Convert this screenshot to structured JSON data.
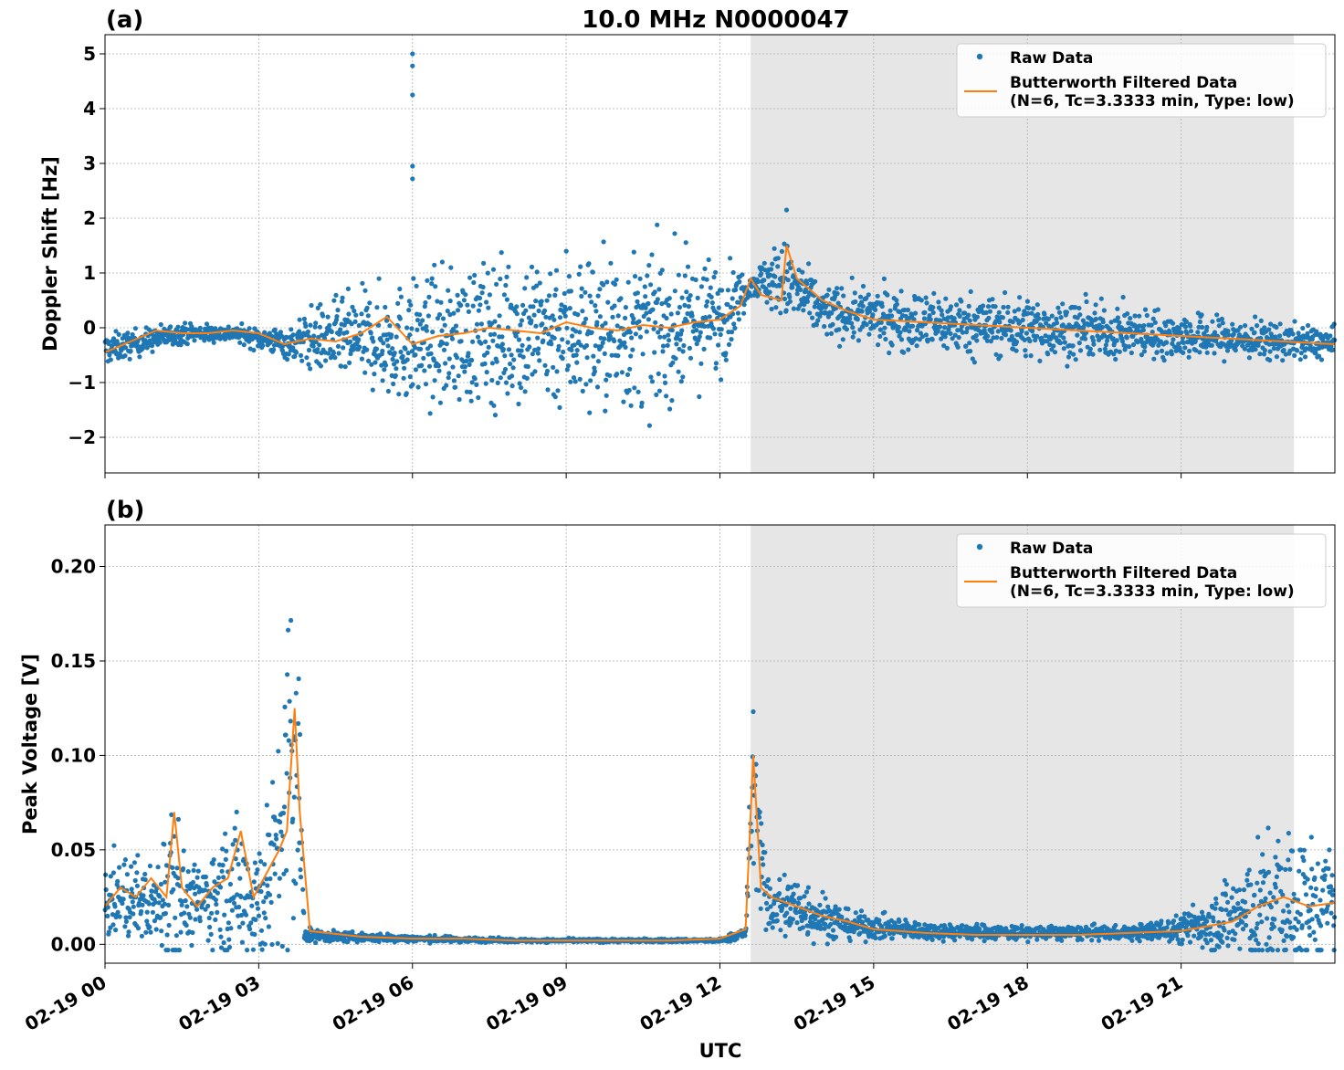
{
  "figure_title": "10.0 MHz N0000047",
  "x_axis_label": "UTC",
  "x_tick_labels": [
    "02-19 00",
    "02-19 03",
    "02-19 06",
    "02-19 09",
    "02-19 12",
    "02-19 15",
    "02-19 18",
    "02-19 21"
  ],
  "colors": {
    "raw": "#1f77b4",
    "filtered": "#ff7f0e",
    "shade": "#e6e6e6",
    "grid": "#b0b0b0"
  },
  "chart_data": [
    {
      "type": "scatter",
      "panel_label": "(a)",
      "ylabel": "Doppler Shift [Hz]",
      "xlim_hours": [
        0,
        24
      ],
      "ylim": [
        -2.65,
        5.35
      ],
      "yticks": [
        -2,
        -1,
        0,
        1,
        2,
        3,
        4,
        5
      ],
      "ytick_labels": [
        "−2",
        "−1",
        "0",
        "1",
        "2",
        "3",
        "4",
        "5"
      ],
      "grid": true,
      "legend_position": "top-right",
      "shaded_region_hours": [
        12.6,
        23.2
      ],
      "series": [
        {
          "name": "Raw Data",
          "style": "points",
          "envelope_hours": [
            0,
            1.5,
            2.5,
            3.6,
            4.0,
            5.0,
            6.0,
            7.5,
            9.0,
            10.0,
            11.0,
            12.0,
            12.6,
            13.2,
            14.0,
            16.0,
            18.0,
            20.0,
            22.0,
            24.0
          ],
          "envelope_center": [
            -0.4,
            -0.1,
            -0.1,
            -0.3,
            -0.2,
            -0.2,
            -0.3,
            -0.1,
            0.0,
            -0.1,
            0.0,
            0.2,
            0.8,
            0.9,
            0.3,
            0.1,
            0.0,
            -0.1,
            -0.2,
            -0.3
          ],
          "envelope_halfwidth": [
            0.3,
            0.2,
            0.15,
            0.3,
            0.6,
            0.9,
            1.2,
            1.4,
            1.6,
            1.6,
            1.4,
            1.1,
            0.2,
            0.8,
            0.5,
            0.6,
            0.6,
            0.5,
            0.4,
            0.3
          ],
          "outliers": [
            [
              6.0,
              5.0
            ],
            [
              6.0,
              4.78
            ],
            [
              6.0,
              4.25
            ],
            [
              6.0,
              2.95
            ],
            [
              6.0,
              2.72
            ],
            [
              13.3,
              2.15
            ]
          ]
        },
        {
          "name": "Butterworth Filtered Data\n(N=6, Tc=3.3333 min, Type: low)",
          "style": "line",
          "x_hours": [
            0,
            0.5,
            1.0,
            1.5,
            2.0,
            2.5,
            3.0,
            3.5,
            4.0,
            4.5,
            5.0,
            5.5,
            6.0,
            6.5,
            7.0,
            7.5,
            8.0,
            8.5,
            9.0,
            9.5,
            10.0,
            10.5,
            11.0,
            11.5,
            12.0,
            12.4,
            12.6,
            12.8,
            13.2,
            13.3,
            13.5,
            14.0,
            14.5,
            15.0,
            16.0,
            17.0,
            18.0,
            19.0,
            20.0,
            21.0,
            22.0,
            23.0,
            24.0
          ],
          "y": [
            -0.45,
            -0.25,
            -0.05,
            -0.1,
            -0.1,
            -0.05,
            -0.1,
            -0.3,
            -0.2,
            -0.25,
            -0.1,
            0.2,
            -0.3,
            -0.15,
            -0.1,
            0.0,
            -0.05,
            -0.1,
            0.1,
            0.0,
            -0.05,
            0.05,
            0.0,
            0.1,
            0.15,
            0.4,
            0.9,
            0.6,
            0.5,
            1.5,
            0.9,
            0.5,
            0.3,
            0.15,
            0.1,
            0.05,
            0.0,
            -0.05,
            -0.1,
            -0.15,
            -0.2,
            -0.25,
            -0.3
          ]
        }
      ]
    },
    {
      "type": "scatter",
      "panel_label": "(b)",
      "ylabel": "Peak Voltage [V]",
      "xlim_hours": [
        0,
        24
      ],
      "ylim": [
        -0.01,
        0.222
      ],
      "yticks": [
        0.0,
        0.05,
        0.1,
        0.15,
        0.2
      ],
      "ytick_labels": [
        "0.00",
        "0.05",
        "0.10",
        "0.15",
        "0.20"
      ],
      "grid": true,
      "legend_position": "top-right",
      "shaded_region_hours": [
        12.6,
        23.2
      ],
      "series": [
        {
          "name": "Raw Data",
          "style": "points",
          "envelope_hours": [
            0,
            0.5,
            1.0,
            1.3,
            1.6,
            2.0,
            2.5,
            3.0,
            3.3,
            3.6,
            3.75,
            3.9,
            4.5,
            6.0,
            8.0,
            10.0,
            12.0,
            12.5,
            12.65,
            12.9,
            13.5,
            14.5,
            16.0,
            18.0,
            20.0,
            21.0,
            22.0,
            23.0,
            24.0
          ],
          "envelope_center": [
            0.022,
            0.025,
            0.02,
            0.04,
            0.02,
            0.025,
            0.03,
            0.025,
            0.04,
            0.08,
            0.09,
            0.005,
            0.004,
            0.003,
            0.002,
            0.002,
            0.002,
            0.006,
            0.09,
            0.02,
            0.02,
            0.01,
            0.007,
            0.006,
            0.006,
            0.008,
            0.015,
            0.02,
            0.02
          ],
          "envelope_halfwidth": [
            0.02,
            0.025,
            0.02,
            0.07,
            0.02,
            0.025,
            0.04,
            0.04,
            0.05,
            0.12,
            0.12,
            0.004,
            0.003,
            0.002,
            0.001,
            0.001,
            0.001,
            0.004,
            0.045,
            0.02,
            0.02,
            0.008,
            0.005,
            0.004,
            0.004,
            0.008,
            0.025,
            0.05,
            0.03
          ]
        },
        {
          "name": "Butterworth Filtered Data\n(N=6, Tc=3.3333 min, Type: low)",
          "style": "line",
          "x_hours": [
            0,
            0.3,
            0.6,
            0.9,
            1.2,
            1.35,
            1.5,
            1.8,
            2.1,
            2.4,
            2.65,
            2.9,
            3.2,
            3.4,
            3.55,
            3.7,
            3.8,
            4.0,
            5.0,
            6.0,
            7.0,
            8.0,
            9.0,
            10.0,
            11.0,
            12.0,
            12.5,
            12.65,
            12.8,
            13.0,
            13.5,
            14.0,
            14.5,
            15.0,
            16.0,
            17.0,
            18.0,
            19.0,
            20.0,
            21.0,
            22.0,
            22.5,
            23.0,
            23.5,
            24.0
          ],
          "y": [
            0.02,
            0.03,
            0.025,
            0.035,
            0.025,
            0.07,
            0.03,
            0.02,
            0.03,
            0.035,
            0.06,
            0.025,
            0.04,
            0.05,
            0.06,
            0.125,
            0.07,
            0.007,
            0.004,
            0.003,
            0.003,
            0.002,
            0.002,
            0.002,
            0.002,
            0.003,
            0.008,
            0.1,
            0.03,
            0.025,
            0.02,
            0.015,
            0.012,
            0.008,
            0.006,
            0.005,
            0.005,
            0.005,
            0.006,
            0.007,
            0.012,
            0.02,
            0.025,
            0.02,
            0.022
          ]
        }
      ]
    }
  ]
}
